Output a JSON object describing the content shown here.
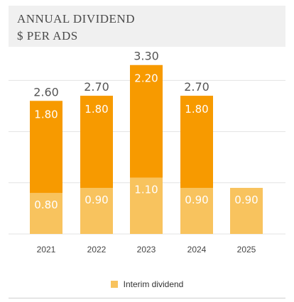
{
  "header": {
    "title_line1": "ANNUAL DIVIDEND",
    "title_line2": "$ PER ADS"
  },
  "colors": {
    "interim": "#f8c35e",
    "final": "#f79a00",
    "title_bg": "#f0f0f0",
    "grid": "#e3e3e3",
    "total_label": "#555555",
    "segment_label": "#ffffff"
  },
  "legend": {
    "items": [
      {
        "label": "Interim dividend",
        "color": "#f8c35e"
      }
    ]
  },
  "chart_data": {
    "type": "bar",
    "stacked": true,
    "title": "ANNUAL DIVIDEND",
    "subtitle": "$ PER ADS",
    "categories": [
      "2021",
      "2022",
      "2023",
      "2024",
      "2025"
    ],
    "series": [
      {
        "name": "Interim dividend",
        "values": [
          0.8,
          0.9,
          1.1,
          0.9,
          0.9
        ],
        "labels": [
          "0.80",
          "0.90",
          "1.10",
          "0.90",
          "0.90"
        ]
      },
      {
        "values": [
          1.8,
          1.8,
          2.2,
          1.8,
          0
        ],
        "labels": [
          "1.80",
          "1.80",
          "2.20",
          "1.80",
          ""
        ]
      }
    ],
    "totals": [
      "2.60",
      "2.70",
      "3.30",
      "2.70",
      ""
    ],
    "ylim": [
      0,
      3.4
    ],
    "gridlines": [
      1.0,
      2.0,
      3.0
    ],
    "grid": true,
    "legend_position": "bottom"
  }
}
